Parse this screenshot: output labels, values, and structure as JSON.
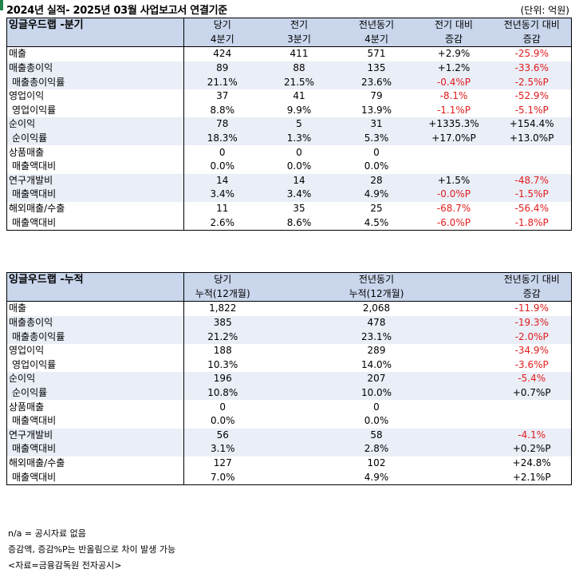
{
  "header": {
    "title": "2024년 실적- 2025년 03월 사업보고서 연결기준",
    "unit": "(단위: 억원)"
  },
  "quarterly": {
    "title": "잉글우드랩 -분기",
    "columns": [
      {
        "line1": "당기",
        "line2": "4분기"
      },
      {
        "line1": "전기",
        "line2": "3분기"
      },
      {
        "line1": "전년동기",
        "line2": "4분기"
      },
      {
        "line1": "전기 대비",
        "line2": "증감"
      },
      {
        "line1": "전년동기 대비",
        "line2": "증감"
      }
    ],
    "rows": [
      {
        "label": "매출",
        "values": [
          "424",
          "411",
          "571",
          "+2.9%",
          "-25.9%"
        ]
      },
      {
        "label": "매출총이익",
        "values": [
          "89",
          "88",
          "135",
          "+1.2%",
          "-33.6%"
        ]
      },
      {
        "label": "매출총이익률",
        "values": [
          "21.1%",
          "21.5%",
          "23.6%",
          "-0.4%P",
          "-2.5%P"
        ]
      },
      {
        "label": "영업이익",
        "values": [
          "37",
          "41",
          "79",
          "-8.1%",
          "-52.9%"
        ]
      },
      {
        "label": "영업이익률",
        "values": [
          "8.8%",
          "9.9%",
          "13.9%",
          "-1.1%P",
          "-5.1%P"
        ]
      },
      {
        "label": "순이익",
        "values": [
          "78",
          "5",
          "31",
          "+1335.3%",
          "+154.4%"
        ]
      },
      {
        "label": "순이익률",
        "values": [
          "18.3%",
          "1.3%",
          "5.3%",
          "+17.0%P",
          "+13.0%P"
        ]
      },
      {
        "label": "상품매출",
        "values": [
          "0",
          "0",
          "0",
          "",
          ""
        ]
      },
      {
        "label": "매출액대비",
        "values": [
          "0.0%",
          "0.0%",
          "0.0%",
          "",
          ""
        ]
      },
      {
        "label": "연구개발비",
        "values": [
          "14",
          "14",
          "28",
          "+1.5%",
          "-48.7%"
        ]
      },
      {
        "label": "매출액대비",
        "values": [
          "3.4%",
          "3.4%",
          "4.9%",
          "-0.0%P",
          "-1.5%P"
        ]
      },
      {
        "label": "해외매출/수출",
        "values": [
          "11",
          "35",
          "25",
          "-68.7%",
          "-56.4%"
        ]
      },
      {
        "label": "매출액대비",
        "values": [
          "2.6%",
          "8.6%",
          "4.5%",
          "-6.0%P",
          "-1.8%P"
        ]
      }
    ]
  },
  "cumulative": {
    "title": "잉글우드랩 -누적",
    "columns": [
      {
        "line1": "당기",
        "line2": "누적(12개월)"
      },
      {
        "line1": "전년동기",
        "line2": "누적(12개월)"
      },
      {
        "line1": "전년동기 대비",
        "line2": "증감"
      }
    ],
    "rows": [
      {
        "label": "매출",
        "values": [
          "1,822",
          "2,068",
          "-11.9%"
        ]
      },
      {
        "label": "매출총이익",
        "values": [
          "385",
          "478",
          "-19.3%"
        ]
      },
      {
        "label": "매출총이익률",
        "values": [
          "21.2%",
          "23.1%",
          "-2.0%P"
        ]
      },
      {
        "label": "영업이익",
        "values": [
          "188",
          "289",
          "-34.9%"
        ]
      },
      {
        "label": "영업이익률",
        "values": [
          "10.3%",
          "14.0%",
          "-3.6%P"
        ]
      },
      {
        "label": "순이익",
        "values": [
          "196",
          "207",
          "-5.4%"
        ]
      },
      {
        "label": "순이익률",
        "values": [
          "10.8%",
          "10.0%",
          "+0.7%P"
        ]
      },
      {
        "label": "상품매출",
        "values": [
          "0",
          "0",
          ""
        ]
      },
      {
        "label": "매출액대비",
        "values": [
          "0.0%",
          "0.0%",
          ""
        ]
      },
      {
        "label": "연구개발비",
        "values": [
          "56",
          "58",
          "-4.1%"
        ]
      },
      {
        "label": "매출액대비",
        "values": [
          "3.1%",
          "2.8%",
          "+0.2%P"
        ]
      },
      {
        "label": "해외매출/수출",
        "values": [
          "127",
          "102",
          "+24.8%"
        ]
      },
      {
        "label": "매출액대비",
        "values": [
          "7.0%",
          "4.9%",
          "+2.1%P"
        ]
      }
    ]
  },
  "footnotes": [
    "n/a = 공시자료 없음",
    "증감액, 증감%P는 반올림으로 차이 발생 가능",
    "<자료=금융감독원 전자공시>"
  ],
  "colors": {
    "header_fill": "#c9d6ec",
    "band_fill": "#e9eef7",
    "negative": "#e21c1c",
    "accent": "#1e8449"
  }
}
